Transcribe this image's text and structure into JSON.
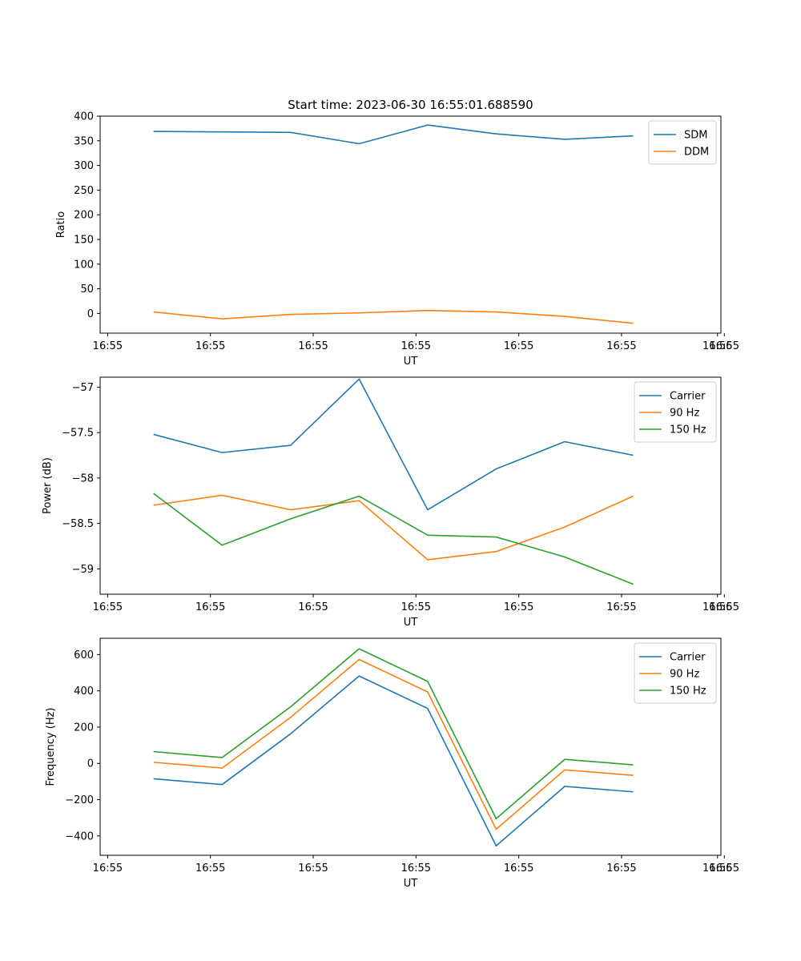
{
  "figure": {
    "title": "Start time: 2023-06-30 16:55:01.688590"
  },
  "chart_data": [
    {
      "type": "line",
      "xlabel": "UT",
      "ylabel": "Ratio",
      "x_tick_labels": [
        "16:55",
        "16:55",
        "16:55",
        "16:55",
        "16:55",
        "16:55",
        "16:55"
      ],
      "x_end_tick_label": "16:56",
      "x": [
        1,
        2,
        3,
        4,
        5,
        6,
        7,
        8
      ],
      "xlim": [
        0.19,
        9.25
      ],
      "ylim": [
        -40,
        400
      ],
      "yticks": [
        0,
        50,
        100,
        150,
        200,
        250,
        300,
        350,
        400
      ],
      "legend_position": "top-right",
      "series": [
        {
          "name": "SDM",
          "color": "#1f77b4",
          "values": [
            369,
            368,
            367,
            344,
            382,
            364,
            353,
            360
          ]
        },
        {
          "name": "DDM",
          "color": "#ff7f0e",
          "values": [
            3,
            -11,
            -2,
            1,
            6,
            3,
            -6,
            -20
          ]
        }
      ]
    },
    {
      "type": "line",
      "xlabel": "UT",
      "ylabel": "Power (dB)",
      "x_tick_labels": [
        "16:55",
        "16:55",
        "16:55",
        "16:55",
        "16:55",
        "16:55",
        "16:55"
      ],
      "x_end_tick_label": "16:56",
      "x": [
        1,
        2,
        3,
        4,
        5,
        6,
        7,
        8
      ],
      "xlim": [
        0.19,
        9.25
      ],
      "ylim": [
        -59.28,
        -56.89
      ],
      "yticks": [
        -59.0,
        -58.5,
        -58.0,
        -57.5,
        -57.0
      ],
      "legend_position": "top-right",
      "series": [
        {
          "name": "Carrier",
          "color": "#1f77b4",
          "values": [
            -57.52,
            -57.72,
            -57.64,
            -56.91,
            -58.35,
            -57.9,
            -57.6,
            -57.75
          ]
        },
        {
          "name": "90 Hz",
          "color": "#ff7f0e",
          "values": [
            -58.3,
            -58.19,
            -58.35,
            -58.25,
            -58.9,
            -58.81,
            -58.54,
            -58.2
          ]
        },
        {
          "name": "150 Hz",
          "color": "#2ca02c",
          "values": [
            -58.17,
            -58.74,
            -58.45,
            -58.2,
            -58.63,
            -58.65,
            -58.87,
            -59.17
          ]
        }
      ]
    },
    {
      "type": "line",
      "xlabel": "UT",
      "ylabel": "Frequency (Hz)",
      "x_tick_labels": [
        "16:55",
        "16:55",
        "16:55",
        "16:55",
        "16:55",
        "16:55",
        "16:55"
      ],
      "x_end_tick_label": "16:56",
      "x": [
        1,
        2,
        3,
        4,
        5,
        6,
        7,
        8
      ],
      "xlim": [
        0.19,
        9.25
      ],
      "ylim": [
        -507,
        690
      ],
      "yticks": [
        -400,
        -200,
        0,
        200,
        400,
        600
      ],
      "legend_position": "top-right",
      "series": [
        {
          "name": "Carrier",
          "color": "#1f77b4",
          "values": [
            -85,
            -117,
            163,
            482,
            303,
            -455,
            -127,
            -157
          ]
        },
        {
          "name": "90 Hz",
          "color": "#ff7f0e",
          "values": [
            6,
            -26,
            254,
            573,
            394,
            -364,
            -36,
            -66
          ]
        },
        {
          "name": "150 Hz",
          "color": "#2ca02c",
          "values": [
            65,
            32,
            312,
            632,
            452,
            -305,
            22,
            -8
          ]
        }
      ]
    }
  ]
}
